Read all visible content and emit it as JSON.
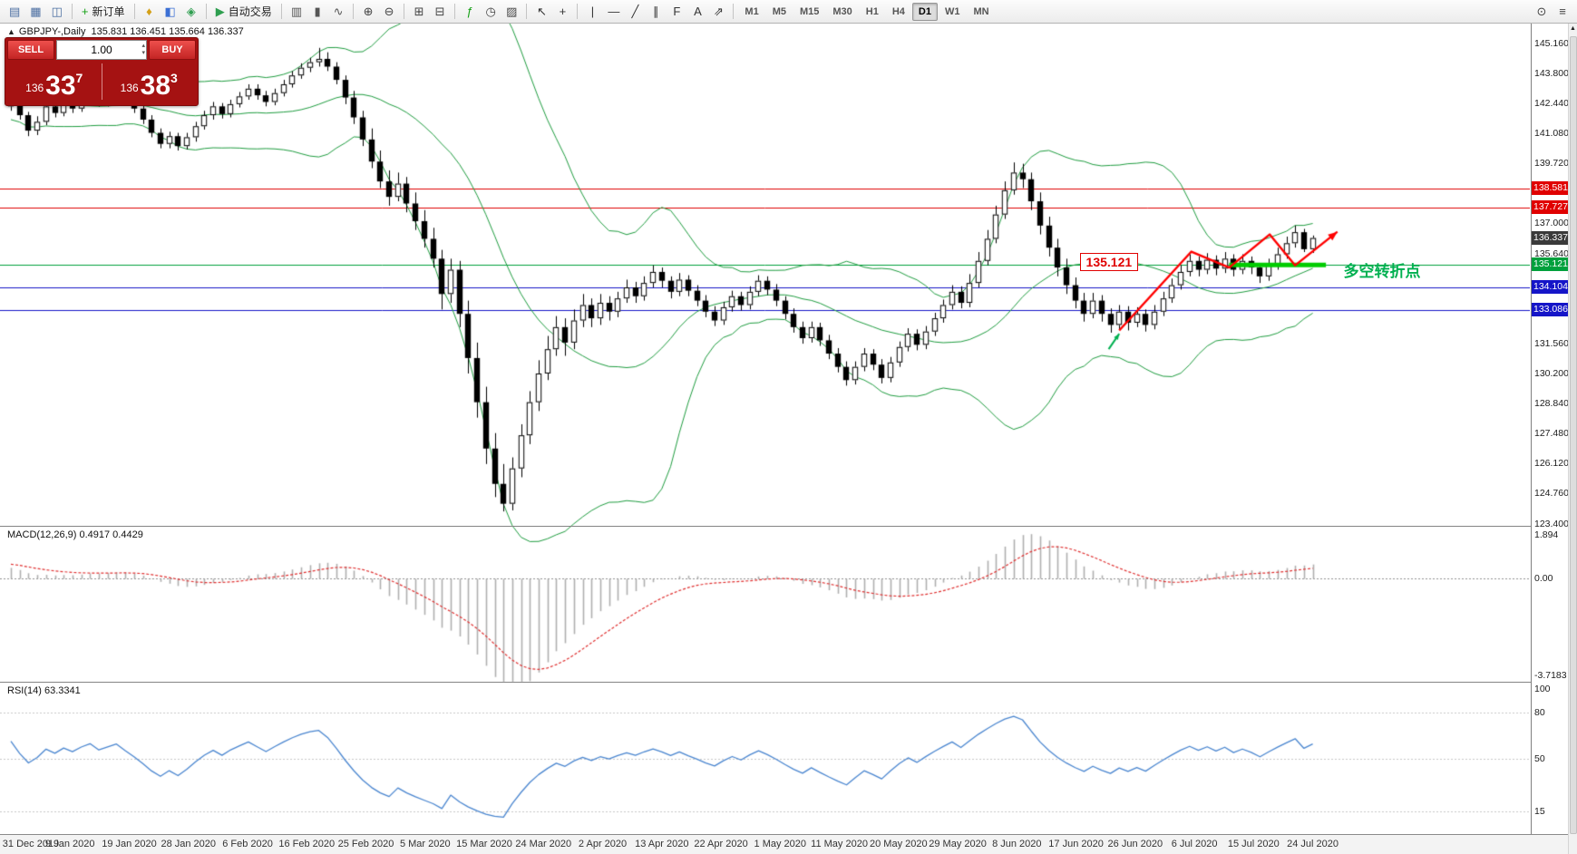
{
  "icons": {
    "collapse": "▲",
    "scroll_up": "▲",
    "spin_up": "▴",
    "spin_down": "▾"
  },
  "toolbar": {
    "groups": [
      {
        "items": [
          {
            "name": "new-chart-icon",
            "glyph": "▤",
            "color": "#4a6da0"
          },
          {
            "name": "profiles-icon",
            "glyph": "▦",
            "color": "#4a6da0"
          },
          {
            "name": "chart-window-icon",
            "glyph": "◫",
            "color": "#4a6da0"
          }
        ]
      },
      {
        "items": [
          {
            "name": "new-order-button",
            "glyph": "+",
            "color": "#14a014",
            "label": "新订单"
          }
        ]
      },
      {
        "items": [
          {
            "name": "market-watch-icon",
            "glyph": "♦",
            "color": "#d4a017"
          },
          {
            "name": "data-window-icon",
            "glyph": "◧",
            "color": "#3b6fd4"
          },
          {
            "name": "navigator-icon",
            "glyph": "◈",
            "color": "#2e9e4f"
          }
        ]
      },
      {
        "items": [
          {
            "name": "autotrading-button",
            "glyph": "▶",
            "color": "#2e9e4f",
            "label": "自动交易"
          }
        ]
      },
      {
        "items": [
          {
            "name": "bar-chart-icon",
            "glyph": "▥",
            "color": "#555"
          },
          {
            "name": "candlestick-icon",
            "glyph": "▮",
            "color": "#555"
          },
          {
            "name": "line-chart-icon",
            "glyph": "∿",
            "color": "#555"
          }
        ]
      },
      {
        "items": [
          {
            "name": "zoom-in-icon",
            "glyph": "⊕",
            "color": "#444"
          },
          {
            "name": "zoom-out-icon",
            "glyph": "⊖",
            "color": "#444"
          }
        ]
      },
      {
        "items": [
          {
            "name": "tile-windows-icon",
            "glyph": "⊞",
            "color": "#444"
          },
          {
            "name": "arrange-windows-icon",
            "glyph": "⊟",
            "color": "#444"
          }
        ]
      },
      {
        "items": [
          {
            "name": "indicators-icon",
            "glyph": "ƒ",
            "color": "#14a014"
          },
          {
            "name": "periods-icon",
            "glyph": "◷",
            "color": "#444"
          },
          {
            "name": "templates-icon",
            "glyph": "▨",
            "color": "#444"
          }
        ]
      },
      {
        "items": [
          {
            "name": "cursor-icon",
            "glyph": "↖",
            "color": "#333"
          },
          {
            "name": "crosshair-icon",
            "glyph": "+",
            "color": "#333"
          }
        ]
      },
      {
        "items": [
          {
            "name": "vertical-line-icon",
            "glyph": "|",
            "color": "#333"
          },
          {
            "name": "horizontal-line-icon",
            "glyph": "―",
            "color": "#333"
          },
          {
            "name": "trendline-icon",
            "glyph": "╱",
            "color": "#333"
          },
          {
            "name": "channel-icon",
            "glyph": "∥",
            "color": "#333"
          },
          {
            "name": "fibonacci-icon",
            "glyph": "F",
            "color": "#333"
          },
          {
            "name": "text-icon",
            "glyph": "A",
            "color": "#333"
          },
          {
            "name": "arrows-icon",
            "glyph": "⇗",
            "color": "#333"
          }
        ]
      },
      {
        "timeframes": [
          "M1",
          "M5",
          "M15",
          "M30",
          "H1",
          "H4",
          "D1",
          "W1",
          "MN"
        ],
        "active": "D1"
      },
      {
        "right": true,
        "items": [
          {
            "name": "search-icon",
            "glyph": "⊙",
            "color": "#444"
          },
          {
            "name": "panels-icon",
            "glyph": "≡",
            "color": "#444"
          }
        ]
      }
    ]
  },
  "chart_title": {
    "symbol_period": "GBPJPY-,Daily",
    "ohlc": "135.831 136.451 135.664 136.337"
  },
  "one_click": {
    "sell_label": "SELL",
    "buy_label": "BUY",
    "volume": "1.00",
    "bid_prefix": "136",
    "bid_big": "33",
    "bid_sup": "7",
    "ask_prefix": "136",
    "ask_big": "38",
    "ask_sup": "3"
  },
  "macd_panel": {
    "label": "MACD(12,26,9) 0.4917 0.4429",
    "fast": 12,
    "slow": 26,
    "signal": 9,
    "axis_labels": [
      "1.894",
      "0.00",
      "-3.7183"
    ],
    "ylim": [
      -3.9,
      1.95
    ],
    "histogram_color": "#b0b0b0",
    "signal_color": "#e03030"
  },
  "rsi_panel": {
    "label": "RSI(14) 63.3341",
    "period": 14,
    "axis_labels": [
      100,
      80,
      50,
      15
    ],
    "levels": [
      80,
      50,
      15
    ],
    "line_color": "#4a86d0",
    "ylim": [
      0,
      100
    ]
  },
  "chart_data": {
    "type": "candlestick",
    "symbol": "GBPJPY-",
    "timeframe": "Daily",
    "ylim": [
      123.3,
      146.05
    ],
    "y_ticks": [
      145.16,
      143.8,
      142.44,
      141.08,
      139.72,
      137.0,
      135.64,
      131.56,
      130.2,
      128.84,
      127.48,
      126.12,
      124.76,
      123.4
    ],
    "date_labels": [
      "31 Dec 2019",
      "9 Jan 2020",
      "19 Jan 2020",
      "28 Jan 2020",
      "6 Feb 2020",
      "16 Feb 2020",
      "25 Feb 2020",
      "5 Mar 2020",
      "15 Mar 2020",
      "24 Mar 2020",
      "2 Apr 2020",
      "13 Apr 2020",
      "22 Apr 2020",
      "1 May 2020",
      "11 May 2020",
      "20 May 2020",
      "29 May 2020",
      "8 Jun 2020",
      "17 Jun 2020",
      "26 Jun 2020",
      "6 Jul 2020",
      "15 Jul 2020",
      "24 Jul 2020"
    ],
    "levels": [
      {
        "value": 138.581,
        "color": "#e00000"
      },
      {
        "value": 137.727,
        "color": "#e00000"
      },
      {
        "value": 135.121,
        "color": "#00a03c"
      },
      {
        "value": 134.104,
        "color": "#1515c8"
      },
      {
        "value": 133.086,
        "color": "#1515c8"
      }
    ],
    "bid_badge": {
      "value": 136.337,
      "color": "#3a3a3a"
    },
    "bollinger": {
      "period": 20,
      "deviation": 2,
      "color": "#1f9d40"
    },
    "pre_closes": [
      138.9,
      139.3,
      139.8,
      140.2,
      140.6,
      141.0,
      141.5,
      141.9,
      142.4,
      142.0,
      142.6,
      143.1,
      143.6,
      144.0,
      143.5,
      143.0,
      142.6,
      142.2,
      142.8,
      143.2,
      142.9,
      142.5,
      142.1,
      141.8,
      142.2,
      142.7,
      143.0,
      142.6,
      142.3,
      142.5
    ],
    "candles": [
      [
        142.3,
        142.9,
        142.1,
        142.65
      ],
      [
        142.65,
        142.8,
        141.7,
        141.9
      ],
      [
        141.9,
        142.05,
        140.95,
        141.2
      ],
      [
        141.2,
        141.85,
        141.0,
        141.6
      ],
      [
        141.6,
        142.5,
        141.45,
        142.3
      ],
      [
        142.3,
        142.55,
        141.8,
        142.0
      ],
      [
        142.0,
        142.65,
        141.85,
        142.45
      ],
      [
        142.45,
        142.7,
        142.0,
        142.2
      ],
      [
        142.2,
        142.8,
        142.05,
        142.6
      ],
      [
        142.6,
        143.1,
        142.4,
        142.9
      ],
      [
        142.9,
        143.05,
        142.3,
        142.5
      ],
      [
        142.5,
        142.95,
        142.3,
        142.75
      ],
      [
        142.75,
        143.2,
        142.55,
        143.0
      ],
      [
        143.0,
        143.15,
        142.4,
        142.6
      ],
      [
        142.6,
        142.8,
        142.0,
        142.2
      ],
      [
        142.2,
        142.4,
        141.5,
        141.7
      ],
      [
        141.7,
        141.9,
        140.9,
        141.1
      ],
      [
        141.1,
        141.3,
        140.4,
        140.6
      ],
      [
        140.6,
        141.15,
        140.4,
        140.95
      ],
      [
        140.95,
        141.1,
        140.3,
        140.5
      ],
      [
        140.5,
        141.1,
        140.35,
        140.9
      ],
      [
        140.9,
        141.6,
        140.7,
        141.4
      ],
      [
        141.4,
        142.1,
        141.25,
        141.9
      ],
      [
        141.9,
        142.5,
        141.7,
        142.3
      ],
      [
        142.3,
        142.45,
        141.75,
        141.95
      ],
      [
        141.95,
        142.6,
        141.8,
        142.4
      ],
      [
        142.4,
        142.95,
        142.25,
        142.75
      ],
      [
        142.75,
        143.3,
        142.6,
        143.1
      ],
      [
        143.1,
        143.3,
        142.6,
        142.8
      ],
      [
        142.8,
        143.0,
        142.3,
        142.5
      ],
      [
        142.5,
        143.1,
        142.35,
        142.9
      ],
      [
        142.9,
        143.5,
        142.75,
        143.3
      ],
      [
        143.3,
        143.9,
        143.15,
        143.7
      ],
      [
        143.7,
        144.25,
        143.55,
        144.05
      ],
      [
        144.05,
        144.5,
        143.85,
        144.3
      ],
      [
        144.3,
        144.95,
        144.1,
        144.45
      ],
      [
        144.45,
        144.75,
        143.9,
        144.1
      ],
      [
        144.1,
        144.3,
        143.3,
        143.5
      ],
      [
        143.5,
        143.7,
        142.4,
        142.7
      ],
      [
        142.7,
        143.0,
        141.5,
        141.8
      ],
      [
        141.8,
        142.1,
        140.5,
        140.8
      ],
      [
        140.8,
        141.3,
        139.5,
        139.8
      ],
      [
        139.8,
        140.3,
        138.6,
        138.9
      ],
      [
        138.9,
        139.4,
        137.8,
        138.2
      ],
      [
        138.2,
        139.3,
        138.0,
        138.8
      ],
      [
        138.8,
        139.1,
        137.5,
        137.9
      ],
      [
        137.9,
        138.4,
        136.7,
        137.1
      ],
      [
        137.1,
        137.6,
        135.9,
        136.3
      ],
      [
        136.3,
        136.8,
        135.0,
        135.4
      ],
      [
        135.4,
        135.8,
        133.1,
        133.8
      ],
      [
        133.8,
        135.4,
        133.4,
        134.9
      ],
      [
        134.9,
        135.3,
        132.3,
        132.9
      ],
      [
        132.9,
        133.5,
        130.2,
        130.9
      ],
      [
        130.9,
        131.6,
        128.2,
        128.9
      ],
      [
        128.9,
        129.6,
        126.1,
        126.8
      ],
      [
        126.8,
        127.5,
        124.6,
        125.2
      ],
      [
        125.2,
        126.1,
        123.95,
        124.3
      ],
      [
        124.3,
        126.4,
        124.0,
        125.9
      ],
      [
        125.9,
        127.9,
        125.5,
        127.4
      ],
      [
        127.4,
        129.4,
        127.0,
        128.9
      ],
      [
        128.9,
        130.8,
        128.5,
        130.2
      ],
      [
        130.2,
        131.9,
        129.9,
        131.3
      ],
      [
        131.3,
        132.8,
        131.0,
        132.3
      ],
      [
        132.3,
        132.7,
        131.0,
        131.6
      ],
      [
        131.6,
        133.1,
        131.3,
        132.6
      ],
      [
        132.6,
        133.8,
        132.3,
        133.3
      ],
      [
        133.3,
        133.6,
        132.3,
        132.7
      ],
      [
        132.7,
        133.8,
        132.4,
        133.4
      ],
      [
        133.4,
        133.7,
        132.6,
        133.0
      ],
      [
        133.0,
        133.9,
        132.75,
        133.6
      ],
      [
        133.6,
        134.45,
        133.4,
        134.1
      ],
      [
        134.1,
        134.35,
        133.4,
        133.7
      ],
      [
        133.7,
        134.6,
        133.5,
        134.3
      ],
      [
        134.3,
        135.1,
        134.1,
        134.8
      ],
      [
        134.8,
        135.0,
        134.1,
        134.4
      ],
      [
        134.4,
        134.6,
        133.6,
        133.9
      ],
      [
        133.9,
        134.75,
        133.7,
        134.45
      ],
      [
        134.45,
        134.65,
        133.7,
        133.95
      ],
      [
        133.95,
        134.2,
        133.25,
        133.5
      ],
      [
        133.5,
        133.75,
        132.75,
        133.0
      ],
      [
        133.0,
        133.25,
        132.35,
        132.6
      ],
      [
        132.6,
        133.45,
        132.4,
        133.2
      ],
      [
        133.2,
        133.95,
        133.0,
        133.7
      ],
      [
        133.7,
        133.9,
        133.05,
        133.3
      ],
      [
        133.3,
        134.15,
        133.1,
        133.9
      ],
      [
        133.9,
        134.65,
        133.7,
        134.4
      ],
      [
        134.4,
        134.6,
        133.75,
        134.0
      ],
      [
        134.0,
        134.25,
        133.25,
        133.5
      ],
      [
        133.5,
        133.7,
        132.65,
        132.9
      ],
      [
        132.9,
        133.15,
        132.05,
        132.3
      ],
      [
        132.3,
        132.55,
        131.55,
        131.8
      ],
      [
        131.8,
        132.55,
        131.6,
        132.3
      ],
      [
        132.3,
        132.5,
        131.45,
        131.7
      ],
      [
        131.7,
        131.95,
        130.85,
        131.1
      ],
      [
        131.1,
        131.35,
        130.25,
        130.5
      ],
      [
        130.5,
        130.75,
        129.65,
        129.9
      ],
      [
        129.9,
        130.75,
        129.7,
        130.5
      ],
      [
        130.5,
        131.35,
        130.3,
        131.1
      ],
      [
        131.1,
        131.3,
        130.35,
        130.6
      ],
      [
        130.6,
        130.85,
        129.75,
        130.0
      ],
      [
        130.0,
        130.95,
        129.8,
        130.7
      ],
      [
        130.7,
        131.65,
        130.5,
        131.4
      ],
      [
        131.4,
        132.25,
        131.2,
        132.0
      ],
      [
        132.0,
        132.2,
        131.25,
        131.5
      ],
      [
        131.5,
        132.35,
        131.3,
        132.1
      ],
      [
        132.1,
        132.95,
        131.9,
        132.7
      ],
      [
        132.7,
        133.55,
        132.5,
        133.3
      ],
      [
        133.3,
        134.2,
        133.1,
        133.9
      ],
      [
        133.9,
        134.15,
        133.15,
        133.4
      ],
      [
        133.4,
        134.7,
        133.2,
        134.3
      ],
      [
        134.3,
        135.7,
        134.1,
        135.3
      ],
      [
        135.3,
        136.7,
        135.1,
        136.3
      ],
      [
        136.3,
        137.8,
        136.1,
        137.4
      ],
      [
        137.4,
        138.9,
        137.2,
        138.5
      ],
      [
        138.5,
        139.76,
        138.3,
        139.3
      ],
      [
        139.3,
        139.7,
        138.6,
        139.0
      ],
      [
        139.0,
        139.3,
        137.6,
        138.0
      ],
      [
        138.0,
        138.4,
        136.5,
        136.9
      ],
      [
        136.9,
        137.3,
        135.5,
        135.9
      ],
      [
        135.9,
        136.3,
        134.6,
        135.0
      ],
      [
        135.0,
        135.4,
        133.8,
        134.2
      ],
      [
        134.2,
        134.55,
        133.15,
        133.5
      ],
      [
        133.5,
        133.85,
        132.55,
        132.9
      ],
      [
        132.9,
        133.85,
        132.7,
        133.5
      ],
      [
        133.5,
        133.75,
        132.55,
        132.9
      ],
      [
        132.9,
        133.15,
        132.05,
        132.4
      ],
      [
        132.4,
        133.3,
        132.2,
        133.0
      ],
      [
        133.0,
        133.25,
        132.15,
        132.5
      ],
      [
        132.5,
        133.2,
        132.3,
        132.9
      ],
      [
        132.9,
        133.1,
        132.1,
        132.4
      ],
      [
        132.4,
        133.3,
        132.2,
        133.0
      ],
      [
        133.0,
        133.9,
        132.8,
        133.6
      ],
      [
        133.6,
        134.5,
        133.4,
        134.2
      ],
      [
        134.2,
        135.1,
        134.0,
        134.8
      ],
      [
        134.8,
        135.6,
        134.6,
        135.3
      ],
      [
        135.3,
        135.5,
        134.6,
        134.9
      ],
      [
        134.9,
        135.65,
        134.7,
        135.35
      ],
      [
        135.35,
        135.55,
        134.65,
        134.95
      ],
      [
        134.95,
        135.7,
        134.75,
        135.4
      ],
      [
        135.4,
        135.6,
        134.6,
        134.9
      ],
      [
        134.9,
        135.6,
        134.7,
        135.3
      ],
      [
        135.3,
        135.5,
        134.7,
        135.0
      ],
      [
        135.0,
        135.2,
        134.3,
        134.6
      ],
      [
        134.6,
        135.4,
        134.4,
        135.1
      ],
      [
        135.1,
        135.9,
        134.9,
        135.6
      ],
      [
        135.6,
        136.4,
        135.4,
        136.1
      ],
      [
        136.1,
        136.9,
        135.9,
        136.6
      ],
      [
        136.6,
        136.75,
        135.7,
        135.83
      ],
      [
        135.831,
        136.451,
        135.664,
        136.337
      ]
    ],
    "annotations": {
      "price_label": {
        "text": "135.121",
        "index": 121.5,
        "price": 135.65
      },
      "turning_point": {
        "text": "多空转折点",
        "index": 151.5,
        "price": 135.0,
        "color": "#00b050"
      },
      "zigzag": {
        "color": "#ff0000",
        "points": [
          [
            126,
            132.15
          ],
          [
            134.2,
            135.72
          ],
          [
            138.5,
            135.0
          ],
          [
            143.1,
            136.5
          ],
          [
            146,
            135.1
          ],
          [
            150.8,
            136.62
          ]
        ]
      },
      "support_line": {
        "color": "#00cc00",
        "price": 135.121,
        "from": 138.5,
        "to": 149.5,
        "width": 5
      },
      "start_arrow": {
        "color": "#00b050",
        "from": [
          124.8,
          131.3
        ],
        "to": [
          126.0,
          132.0
        ]
      }
    }
  }
}
